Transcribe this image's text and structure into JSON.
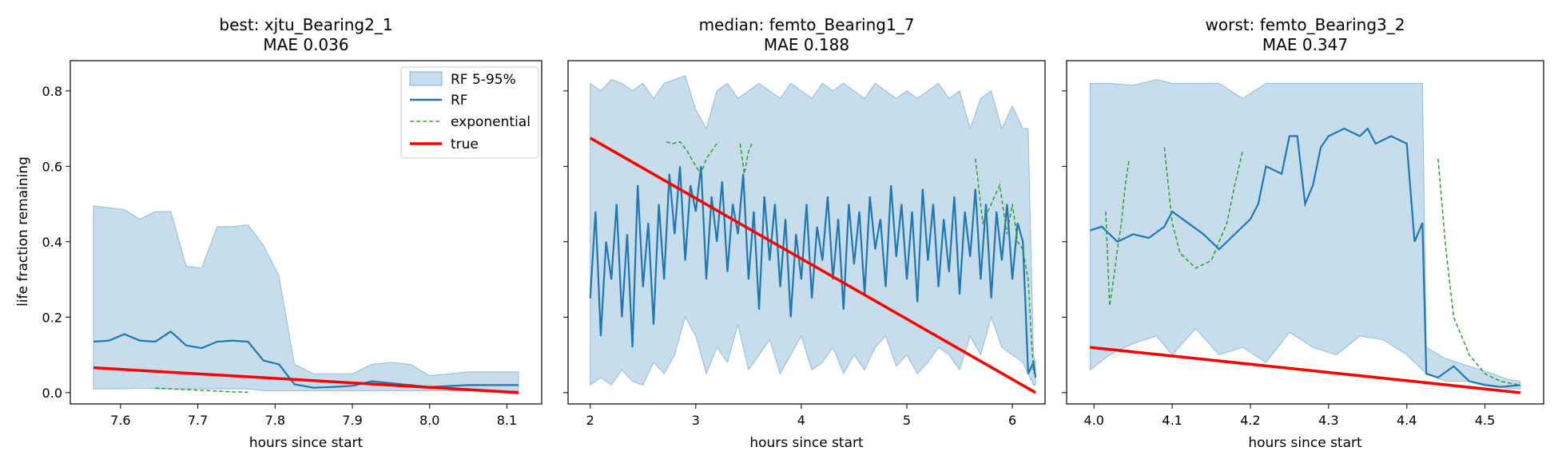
{
  "colors": {
    "band": "#1f77b4",
    "rf": "#1f77b4",
    "exponential": "#2ca02c",
    "true": "#ff0000"
  },
  "ylabel": "life fraction remaining",
  "legend": {
    "band": "RF 5-95%",
    "rf": "RF",
    "exponential": "exponential",
    "true": "true",
    "placement": "upper right of first panel"
  },
  "chart_data": [
    {
      "type": "line",
      "title": "best: xjtu_Bearing2_1",
      "subtitle": "MAE 0.036",
      "xlabel": "hours since start",
      "ylabel": "life fraction remaining",
      "xlim": [
        7.535,
        8.145
      ],
      "ylim": [
        -0.03,
        0.88
      ],
      "xticks": [
        7.6,
        7.7,
        7.8,
        7.9,
        8.0,
        8.1
      ],
      "xtick_labels": [
        "7.6",
        "7.7",
        "7.8",
        "7.9",
        "8.0",
        "8.1"
      ],
      "yticks": [
        0.0,
        0.2,
        0.4,
        0.6,
        0.8
      ],
      "ytick_labels": [
        "0.0",
        "0.2",
        "0.4",
        "0.6",
        "0.8"
      ],
      "band": {
        "name": "RF 5-95%",
        "x": [
          7.565,
          7.585,
          7.605,
          7.625,
          7.645,
          7.665,
          7.685,
          7.705,
          7.725,
          7.745,
          7.765,
          7.785,
          7.805,
          7.825,
          7.85,
          7.875,
          7.9,
          7.925,
          7.95,
          7.975,
          8.0,
          8.05,
          8.1,
          8.115
        ],
        "lower": [
          0.01,
          0.01,
          0.01,
          0.012,
          0.01,
          0.01,
          0.01,
          0.01,
          0.01,
          0.01,
          0.01,
          0.005,
          0.005,
          0.005,
          0.005,
          0.005,
          0.005,
          0.005,
          0.005,
          0.005,
          0.005,
          0.005,
          0.005,
          0.005
        ],
        "upper": [
          0.495,
          0.49,
          0.485,
          0.46,
          0.48,
          0.48,
          0.335,
          0.33,
          0.44,
          0.44,
          0.445,
          0.39,
          0.31,
          0.075,
          0.05,
          0.05,
          0.05,
          0.075,
          0.08,
          0.075,
          0.045,
          0.055,
          0.055,
          0.055
        ]
      },
      "series": [
        {
          "name": "RF",
          "x": [
            7.565,
            7.585,
            7.605,
            7.625,
            7.645,
            7.665,
            7.685,
            7.705,
            7.725,
            7.745,
            7.765,
            7.785,
            7.805,
            7.825,
            7.85,
            7.875,
            7.9,
            7.925,
            7.95,
            7.975,
            8.0,
            8.05,
            8.1,
            8.115
          ],
          "y": [
            0.135,
            0.138,
            0.155,
            0.138,
            0.135,
            0.162,
            0.125,
            0.118,
            0.135,
            0.138,
            0.135,
            0.085,
            0.075,
            0.022,
            0.013,
            0.015,
            0.018,
            0.03,
            0.025,
            0.02,
            0.015,
            0.02,
            0.02,
            0.02
          ]
        },
        {
          "name": "exponential",
          "x": [
            7.645,
            7.665,
            7.685,
            7.705,
            7.725,
            7.745,
            7.765
          ],
          "y": [
            0.012,
            0.01,
            0.008,
            0.006,
            0.004,
            0.002,
            0.001
          ]
        },
        {
          "name": "true",
          "x": [
            7.565,
            8.115
          ],
          "y": [
            0.066,
            0.0
          ]
        }
      ]
    },
    {
      "type": "line",
      "title": "median: femto_Bearing1_7",
      "subtitle": "MAE 0.188",
      "xlabel": "hours since start",
      "ylabel": "",
      "xlim": [
        1.79,
        6.31
      ],
      "ylim": [
        -0.03,
        0.88
      ],
      "xticks": [
        2,
        3,
        4,
        5,
        6
      ],
      "xtick_labels": [
        "2",
        "3",
        "4",
        "5",
        "6"
      ],
      "yticks": [
        0.0,
        0.2,
        0.4,
        0.6,
        0.8
      ],
      "ytick_labels": [
        "",
        "",
        "",
        "",
        ""
      ],
      "band": {
        "name": "RF 5-95%",
        "x": [
          2.0,
          2.1,
          2.2,
          2.3,
          2.4,
          2.5,
          2.6,
          2.7,
          2.8,
          2.9,
          3.0,
          3.1,
          3.2,
          3.3,
          3.4,
          3.5,
          3.6,
          3.7,
          3.8,
          3.9,
          4.0,
          4.1,
          4.2,
          4.3,
          4.4,
          4.5,
          4.6,
          4.7,
          4.8,
          4.9,
          5.0,
          5.1,
          5.2,
          5.3,
          5.4,
          5.5,
          5.6,
          5.7,
          5.8,
          5.9,
          6.0,
          6.1,
          6.15,
          6.2,
          6.22
        ],
        "lower": [
          0.02,
          0.04,
          0.02,
          0.06,
          0.03,
          0.02,
          0.08,
          0.05,
          0.1,
          0.2,
          0.15,
          0.05,
          0.12,
          0.08,
          0.18,
          0.06,
          0.1,
          0.14,
          0.05,
          0.1,
          0.15,
          0.06,
          0.08,
          0.12,
          0.05,
          0.1,
          0.06,
          0.12,
          0.15,
          0.07,
          0.1,
          0.05,
          0.08,
          0.12,
          0.1,
          0.06,
          0.15,
          0.1,
          0.2,
          0.12,
          0.1,
          0.08,
          0.05,
          0.02,
          0.02
        ],
        "upper": [
          0.82,
          0.8,
          0.83,
          0.82,
          0.8,
          0.82,
          0.78,
          0.82,
          0.83,
          0.84,
          0.75,
          0.7,
          0.8,
          0.82,
          0.78,
          0.8,
          0.82,
          0.8,
          0.78,
          0.82,
          0.8,
          0.78,
          0.82,
          0.8,
          0.82,
          0.8,
          0.78,
          0.82,
          0.8,
          0.78,
          0.8,
          0.78,
          0.8,
          0.82,
          0.78,
          0.8,
          0.7,
          0.78,
          0.8,
          0.7,
          0.76,
          0.7,
          0.7,
          0.1,
          0.08
        ]
      },
      "series": [
        {
          "name": "RF",
          "x": [
            2.0,
            2.05,
            2.1,
            2.15,
            2.2,
            2.25,
            2.3,
            2.35,
            2.4,
            2.45,
            2.5,
            2.55,
            2.6,
            2.65,
            2.7,
            2.75,
            2.8,
            2.85,
            2.9,
            2.95,
            3.0,
            3.05,
            3.1,
            3.15,
            3.2,
            3.25,
            3.3,
            3.35,
            3.4,
            3.45,
            3.5,
            3.55,
            3.6,
            3.65,
            3.7,
            3.75,
            3.8,
            3.85,
            3.9,
            3.95,
            4.0,
            4.05,
            4.1,
            4.15,
            4.2,
            4.25,
            4.3,
            4.35,
            4.4,
            4.45,
            4.5,
            4.55,
            4.6,
            4.65,
            4.7,
            4.75,
            4.8,
            4.85,
            4.9,
            4.95,
            5.0,
            5.05,
            5.1,
            5.15,
            5.2,
            5.25,
            5.3,
            5.35,
            5.4,
            5.45,
            5.5,
            5.55,
            5.6,
            5.65,
            5.7,
            5.75,
            5.8,
            5.85,
            5.9,
            5.95,
            6.0,
            6.05,
            6.1,
            6.15,
            6.2,
            6.22
          ],
          "y": [
            0.25,
            0.48,
            0.15,
            0.4,
            0.3,
            0.5,
            0.2,
            0.42,
            0.12,
            0.55,
            0.28,
            0.45,
            0.18,
            0.5,
            0.3,
            0.58,
            0.42,
            0.6,
            0.35,
            0.55,
            0.48,
            0.6,
            0.3,
            0.52,
            0.4,
            0.56,
            0.32,
            0.5,
            0.42,
            0.58,
            0.3,
            0.48,
            0.22,
            0.52,
            0.35,
            0.5,
            0.28,
            0.46,
            0.2,
            0.42,
            0.3,
            0.5,
            0.25,
            0.44,
            0.35,
            0.52,
            0.3,
            0.46,
            0.22,
            0.5,
            0.34,
            0.48,
            0.26,
            0.52,
            0.38,
            0.46,
            0.28,
            0.55,
            0.36,
            0.5,
            0.3,
            0.48,
            0.24,
            0.54,
            0.35,
            0.5,
            0.28,
            0.46,
            0.32,
            0.52,
            0.26,
            0.48,
            0.36,
            0.54,
            0.3,
            0.5,
            0.25,
            0.48,
            0.35,
            0.5,
            0.3,
            0.45,
            0.4,
            0.05,
            0.08,
            0.04
          ]
        },
        {
          "name": "exponential",
          "x": [
            2.72,
            2.78,
            2.85,
            2.92,
            3.0,
            3.05,
            3.1,
            3.15,
            3.2,
            3.22
          ],
          "y": [
            0.665,
            0.66,
            0.665,
            0.64,
            0.6,
            0.58,
            0.62,
            0.64,
            0.66,
            0.665
          ]
        },
        {
          "name": "exponential",
          "x": [
            3.42,
            3.46,
            3.5,
            3.54
          ],
          "y": [
            0.66,
            0.58,
            0.64,
            0.665
          ]
        },
        {
          "name": "exponential",
          "x": [
            5.65,
            5.72,
            5.8,
            5.88,
            5.95,
            6.0,
            6.05,
            6.1,
            6.15,
            6.2
          ],
          "y": [
            0.62,
            0.45,
            0.5,
            0.55,
            0.42,
            0.5,
            0.4,
            0.38,
            0.3,
            0.05
          ]
        },
        {
          "name": "true",
          "x": [
            2.0,
            6.22
          ],
          "y": [
            0.675,
            0.0
          ]
        }
      ]
    },
    {
      "type": "line",
      "title": "worst: femto_Bearing3_2",
      "subtitle": "MAE 0.347",
      "xlabel": "hours since start",
      "ylabel": "",
      "xlim": [
        3.965,
        4.575
      ],
      "ylim": [
        -0.03,
        0.88
      ],
      "xticks": [
        4.0,
        4.1,
        4.2,
        4.3,
        4.4,
        4.5
      ],
      "xtick_labels": [
        "4.0",
        "4.1",
        "4.2",
        "4.3",
        "4.4",
        "4.5"
      ],
      "yticks": [
        0.0,
        0.2,
        0.4,
        0.6,
        0.8
      ],
      "ytick_labels": [
        "",
        "",
        "",
        "",
        ""
      ],
      "band": {
        "name": "RF 5-95%",
        "x": [
          3.995,
          4.02,
          4.05,
          4.08,
          4.1,
          4.13,
          4.16,
          4.19,
          4.22,
          4.25,
          4.28,
          4.31,
          4.34,
          4.37,
          4.4,
          4.42,
          4.425,
          4.45,
          4.48,
          4.51,
          4.53,
          4.545
        ],
        "lower": [
          0.06,
          0.1,
          0.13,
          0.15,
          0.1,
          0.17,
          0.1,
          0.12,
          0.08,
          0.16,
          0.12,
          0.1,
          0.15,
          0.14,
          0.1,
          0.06,
          0.05,
          0.03,
          0.03,
          0.02,
          0.01,
          0.01
        ],
        "upper": [
          0.82,
          0.82,
          0.815,
          0.83,
          0.82,
          0.82,
          0.82,
          0.78,
          0.82,
          0.82,
          0.82,
          0.82,
          0.82,
          0.82,
          0.82,
          0.82,
          0.12,
          0.09,
          0.07,
          0.05,
          0.035,
          0.03
        ]
      },
      "series": [
        {
          "name": "RF",
          "x": [
            3.995,
            4.01,
            4.03,
            4.05,
            4.07,
            4.09,
            4.1,
            4.12,
            4.14,
            4.16,
            4.18,
            4.2,
            4.21,
            4.22,
            4.24,
            4.25,
            4.26,
            4.27,
            4.28,
            4.29,
            4.3,
            4.32,
            4.34,
            4.35,
            4.36,
            4.38,
            4.4,
            4.41,
            4.42,
            4.425,
            4.44,
            4.46,
            4.48,
            4.5,
            4.52,
            4.545
          ],
          "y": [
            0.43,
            0.44,
            0.4,
            0.42,
            0.41,
            0.44,
            0.48,
            0.45,
            0.42,
            0.38,
            0.42,
            0.46,
            0.5,
            0.6,
            0.58,
            0.68,
            0.68,
            0.5,
            0.55,
            0.65,
            0.68,
            0.7,
            0.68,
            0.7,
            0.66,
            0.68,
            0.66,
            0.4,
            0.45,
            0.05,
            0.04,
            0.07,
            0.03,
            0.02,
            0.015,
            0.02
          ]
        },
        {
          "name": "exponential",
          "x": [
            4.015,
            4.02,
            4.025,
            4.03,
            4.035,
            4.04,
            4.045
          ],
          "y": [
            0.48,
            0.23,
            0.3,
            0.38,
            0.45,
            0.55,
            0.62
          ]
        },
        {
          "name": "exponential",
          "x": [
            4.09,
            4.1,
            4.11,
            4.13,
            4.15,
            4.17,
            4.18,
            4.19
          ],
          "y": [
            0.65,
            0.45,
            0.37,
            0.33,
            0.35,
            0.45,
            0.55,
            0.64
          ]
        },
        {
          "name": "exponential",
          "x": [
            4.44,
            4.45,
            4.46,
            4.48,
            4.5,
            4.52,
            4.545
          ],
          "y": [
            0.62,
            0.38,
            0.2,
            0.1,
            0.05,
            0.03,
            0.02
          ]
        },
        {
          "name": "true",
          "x": [
            3.995,
            4.545
          ],
          "y": [
            0.12,
            0.0
          ]
        }
      ]
    }
  ]
}
